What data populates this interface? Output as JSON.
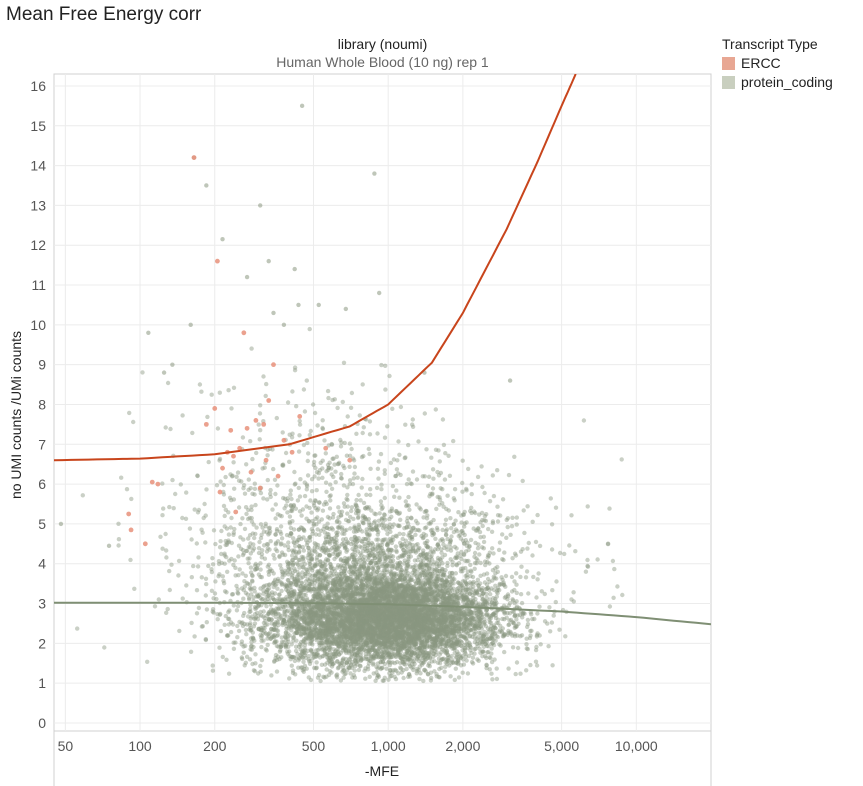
{
  "chart_data": {
    "type": "scatter",
    "title": "Mean Free Energy corr",
    "facet_label": "library (noumi)",
    "facet_value": "Human Whole Blood (10 ng) rep 1",
    "xlabel": "-MFE",
    "ylabel": "no UMI counts /UMi counts",
    "x_scale": "log",
    "xlim": [
      45,
      20000
    ],
    "ylim": [
      0,
      16.3
    ],
    "x_ticks": [
      50,
      100,
      200,
      500,
      1000,
      2000,
      5000,
      10000
    ],
    "x_tick_labels": [
      "50",
      "100",
      "200",
      "500",
      "1,000",
      "2,000",
      "5,000",
      "10,000"
    ],
    "y_ticks": [
      0,
      1,
      2,
      3,
      4,
      5,
      6,
      7,
      8,
      9,
      10,
      11,
      12,
      13,
      14,
      15,
      16
    ],
    "grid": true,
    "legend": {
      "title": "Transcript Type",
      "position": "top-right",
      "entries": [
        {
          "label": "ERCC",
          "color": "#e8a793"
        },
        {
          "label": "protein_coding",
          "color": "#c9cfbf"
        }
      ]
    },
    "series": [
      {
        "name": "ERCC",
        "color": "#e8917a",
        "points": [
          [
            90,
            5.25
          ],
          [
            92,
            4.85
          ],
          [
            105,
            4.5
          ],
          [
            112,
            6.05
          ],
          [
            118,
            6.0
          ],
          [
            165,
            14.2
          ],
          [
            185,
            7.5
          ],
          [
            200,
            7.9
          ],
          [
            205,
            11.6
          ],
          [
            210,
            5.8
          ],
          [
            215,
            6.4
          ],
          [
            225,
            6.8
          ],
          [
            232,
            7.35
          ],
          [
            238,
            6.7
          ],
          [
            243,
            5.3
          ],
          [
            252,
            6.9
          ],
          [
            262,
            9.8
          ],
          [
            270,
            7.4
          ],
          [
            280,
            6.3
          ],
          [
            293,
            7.6
          ],
          [
            305,
            5.9
          ],
          [
            315,
            7.5
          ],
          [
            322,
            6.6
          ],
          [
            330,
            8.1
          ],
          [
            345,
            9.0
          ],
          [
            360,
            6.2
          ],
          [
            380,
            7.1
          ],
          [
            410,
            6.8
          ],
          [
            440,
            7.7
          ],
          [
            560,
            6.9
          ],
          [
            700,
            6.6
          ]
        ]
      },
      {
        "name": "protein_coding",
        "color": "#8a9780",
        "points": [
          [
            48,
            5.0
          ],
          [
            75,
            4.45
          ],
          [
            108,
            9.8
          ],
          [
            125,
            8.8
          ],
          [
            135,
            9.0
          ],
          [
            160,
            10.0
          ],
          [
            165,
            14.2
          ],
          [
            185,
            13.5
          ],
          [
            215,
            12.15
          ],
          [
            270,
            11.2
          ],
          [
            305,
            13.0
          ],
          [
            330,
            11.6
          ],
          [
            345,
            10.3
          ],
          [
            380,
            10.0
          ],
          [
            420,
            11.4
          ],
          [
            435,
            10.5
          ],
          [
            450,
            15.5
          ],
          [
            525,
            10.5
          ],
          [
            675,
            10.4
          ],
          [
            880,
            13.8
          ],
          [
            920,
            10.8
          ],
          [
            1400,
            8.8
          ],
          [
            3100,
            8.6
          ]
        ],
        "cloud": [
          {
            "x_center": 1000,
            "log10_spread": 0.22,
            "y_center": 2.6,
            "y_spread": 0.55,
            "count": 5200
          },
          {
            "x_center": 900,
            "log10_spread": 0.3,
            "y_center": 3.3,
            "y_spread": 1.1,
            "count": 2400
          },
          {
            "x_center": 700,
            "log10_spread": 0.34,
            "y_center": 4.4,
            "y_spread": 1.3,
            "count": 900
          },
          {
            "x_center": 450,
            "log10_spread": 0.28,
            "y_center": 6.9,
            "y_spread": 1.1,
            "count": 170
          }
        ]
      }
    ],
    "fit_lines": [
      {
        "name": "ERCC",
        "color": "#c8451c",
        "points": [
          [
            45,
            6.6
          ],
          [
            100,
            6.64
          ],
          [
            200,
            6.75
          ],
          [
            400,
            7.0
          ],
          [
            700,
            7.45
          ],
          [
            1000,
            8.0
          ],
          [
            1500,
            9.05
          ],
          [
            2000,
            10.3
          ],
          [
            3000,
            12.4
          ],
          [
            4000,
            14.1
          ],
          [
            5000,
            15.5
          ],
          [
            5700,
            16.3
          ]
        ]
      },
      {
        "name": "protein_coding",
        "color": "#7f8f74",
        "points": [
          [
            45,
            3.02
          ],
          [
            200,
            3.02
          ],
          [
            500,
            3.01
          ],
          [
            1000,
            2.98
          ],
          [
            2000,
            2.92
          ],
          [
            5000,
            2.8
          ],
          [
            10000,
            2.66
          ],
          [
            20000,
            2.48
          ]
        ]
      }
    ]
  }
}
